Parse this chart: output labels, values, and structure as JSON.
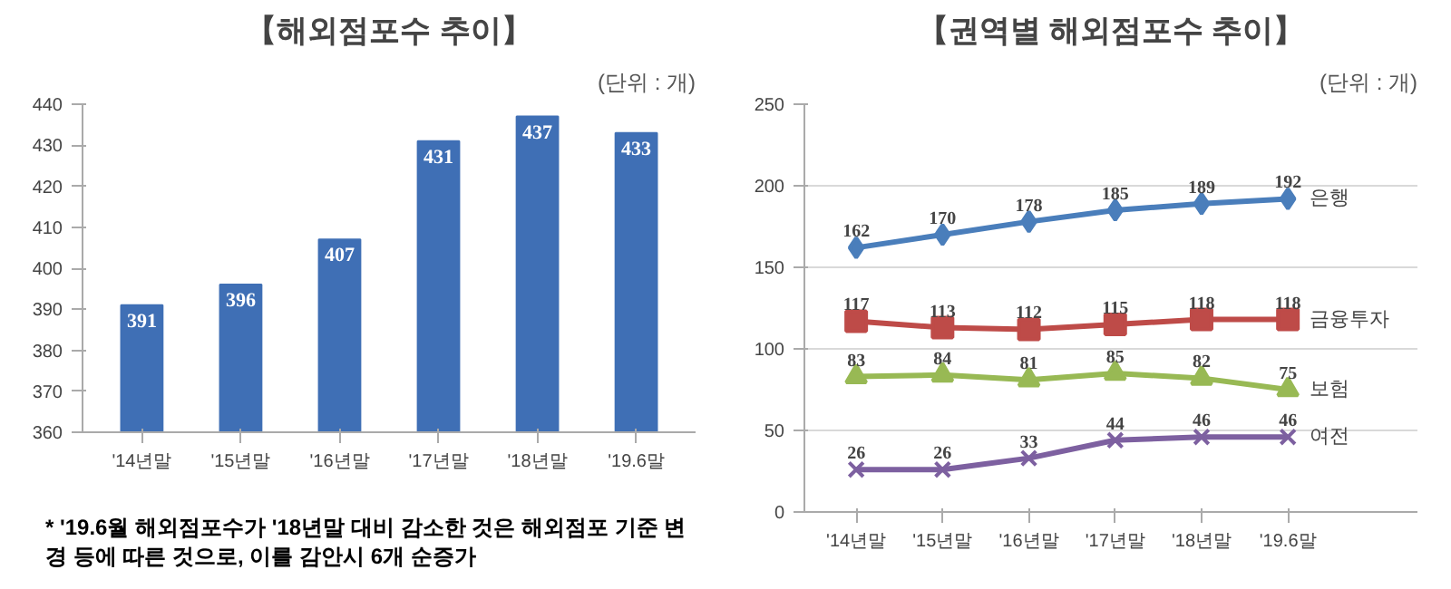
{
  "chart_data": [
    {
      "type": "bar",
      "title": "【해외점포수 추이】",
      "subtitle": "(단위 : 개)",
      "categories": [
        "'14년말",
        "'15년말",
        "'16년말",
        "'17년말",
        "'18년말",
        "'19.6말"
      ],
      "values": [
        391,
        396,
        407,
        431,
        437,
        433
      ],
      "color": "#3f6fb5",
      "ylim": [
        360,
        440
      ],
      "yticks": [
        360,
        370,
        380,
        390,
        400,
        410,
        420,
        430,
        440
      ],
      "grid": false,
      "data_labels": true,
      "annotations": [
        "* '19.6월 해외점포수가 '18년말 대비 감소한 것은 해외점포 기준 변경 등에 따른 것으로, 이를 감안시 6개 순증가"
      ]
    },
    {
      "type": "line",
      "title": "【권역별 해외점포수 추이】",
      "subtitle": "(단위 : 개)",
      "categories": [
        "'14년말",
        "'15년말",
        "'16년말",
        "'17년말",
        "'18년말",
        "'19.6말"
      ],
      "ylim": [
        0,
        250
      ],
      "yticks": [
        0,
        50,
        100,
        150,
        200,
        250
      ],
      "grid": "y",
      "data_labels": true,
      "series": [
        {
          "name": "은행",
          "color": "#4a7ebb",
          "marker": "diamond",
          "values": [
            162,
            170,
            178,
            185,
            189,
            192
          ]
        },
        {
          "name": "금융투자",
          "color": "#be4b48",
          "marker": "square",
          "values": [
            117,
            113,
            112,
            115,
            118,
            118
          ]
        },
        {
          "name": "보험",
          "color": "#98b954",
          "marker": "triangle",
          "values": [
            83,
            84,
            81,
            85,
            82,
            75
          ]
        },
        {
          "name": "여전",
          "color": "#7d60a0",
          "marker": "cross",
          "values": [
            26,
            26,
            33,
            44,
            46,
            46
          ]
        }
      ]
    }
  ]
}
